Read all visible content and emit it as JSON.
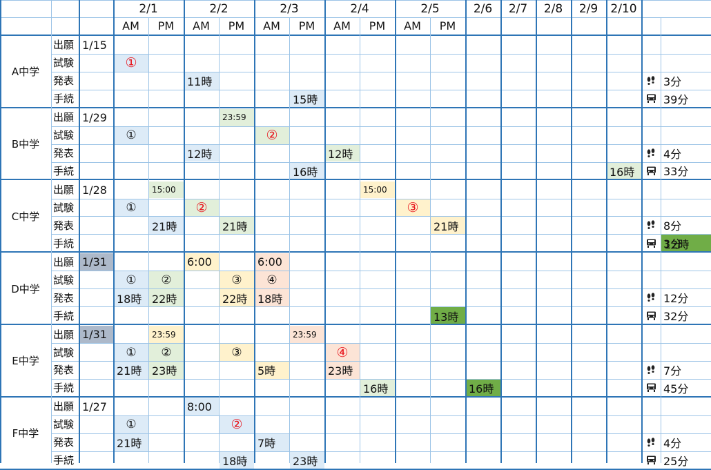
{
  "header": {
    "dates": [
      "2/1",
      "2/2",
      "2/3",
      "2/4",
      "2/5",
      "2/6",
      "2/7",
      "2/8",
      "2/9",
      "2/10"
    ],
    "am": "AM",
    "pm": "PM"
  },
  "row_labels": [
    "出願",
    "試験",
    "発表",
    "手続"
  ],
  "colors": {
    "blue": "#ddebf7",
    "green_light": "#e2efda",
    "yellow": "#fff2cc",
    "peach": "#fce4d6",
    "grey_blue": "#adb9ca",
    "green_dark": "#70ad47",
    "border": "#2e75b6",
    "grid": "#9bc3e6"
  },
  "schools": [
    {
      "name": "A中学",
      "cells": [
        {
          "row": 0,
          "col": 0,
          "text": "1/15",
          "style": "plain"
        },
        {
          "row": 1,
          "col": 1,
          "text": "①",
          "style": "blue",
          "red": true
        },
        {
          "row": 2,
          "col": 3,
          "text": "11時",
          "style": "blue"
        },
        {
          "row": 3,
          "col": 6,
          "text": "15時",
          "style": "blue"
        }
      ],
      "walk": "3分",
      "train": "39分"
    },
    {
      "name": "B中学",
      "cells": [
        {
          "row": 0,
          "col": 0,
          "text": "1/29",
          "style": "plain"
        },
        {
          "row": 0,
          "col": 4,
          "text": "23:59",
          "style": "green_light",
          "small": true
        },
        {
          "row": 1,
          "col": 1,
          "text": "①",
          "style": "blue"
        },
        {
          "row": 1,
          "col": 5,
          "text": "②",
          "style": "green_light",
          "red": true
        },
        {
          "row": 2,
          "col": 3,
          "text": "12時",
          "style": "blue"
        },
        {
          "row": 2,
          "col": 7,
          "text": "12時",
          "style": "green_light"
        },
        {
          "row": 3,
          "col": 6,
          "text": "16時",
          "style": "blue"
        },
        {
          "row": 3,
          "col": 15,
          "text": "16時",
          "style": "green_light"
        }
      ],
      "walk": "4分",
      "train": "33分"
    },
    {
      "name": "C中学",
      "cells": [
        {
          "row": 0,
          "col": 0,
          "text": "1/28",
          "style": "plain"
        },
        {
          "row": 0,
          "col": 2,
          "text": "15:00",
          "style": "green_light",
          "small": true
        },
        {
          "row": 0,
          "col": 8,
          "text": "15:00",
          "style": "yellow",
          "small": true
        },
        {
          "row": 1,
          "col": 1,
          "text": "①",
          "style": "blue"
        },
        {
          "row": 1,
          "col": 3,
          "text": "②",
          "style": "green_light",
          "red": true
        },
        {
          "row": 1,
          "col": 9,
          "text": "③",
          "style": "yellow",
          "red": true
        },
        {
          "row": 2,
          "col": 2,
          "text": "21時",
          "style": "blue"
        },
        {
          "row": 2,
          "col": 4,
          "text": "21時",
          "style": "green_light"
        },
        {
          "row": 2,
          "col": 10,
          "text": "21時",
          "style": "yellow"
        },
        {
          "row": 3,
          "col": 17,
          "text": "12時",
          "style": "green_dark"
        }
      ],
      "walk": "8分",
      "train": "3分"
    },
    {
      "name": "D中学",
      "cells": [
        {
          "row": 0,
          "col": 0,
          "text": "1/31",
          "style": "grey_blue"
        },
        {
          "row": 0,
          "col": 3,
          "text": "6:00",
          "style": "yellow"
        },
        {
          "row": 0,
          "col": 5,
          "text": "6:00",
          "style": "peach"
        },
        {
          "row": 1,
          "col": 1,
          "text": "①",
          "style": "blue"
        },
        {
          "row": 1,
          "col": 2,
          "text": "②",
          "style": "green_light"
        },
        {
          "row": 1,
          "col": 4,
          "text": "③",
          "style": "yellow"
        },
        {
          "row": 1,
          "col": 5,
          "text": "④",
          "style": "peach"
        },
        {
          "row": 2,
          "col": 1,
          "text": "18時",
          "style": "blue"
        },
        {
          "row": 2,
          "col": 2,
          "text": "22時",
          "style": "green_light"
        },
        {
          "row": 2,
          "col": 4,
          "text": "22時",
          "style": "yellow"
        },
        {
          "row": 2,
          "col": 5,
          "text": "18時",
          "style": "peach"
        },
        {
          "row": 3,
          "col": 10,
          "text": "13時",
          "style": "green_dark"
        }
      ],
      "walk": "12分",
      "train": "32分"
    },
    {
      "name": "E中学",
      "cells": [
        {
          "row": 0,
          "col": 0,
          "text": "1/31",
          "style": "grey_blue"
        },
        {
          "row": 0,
          "col": 2,
          "text": "23:59",
          "style": "yellow",
          "small": true
        },
        {
          "row": 0,
          "col": 6,
          "text": "23:59",
          "style": "peach",
          "small": true
        },
        {
          "row": 1,
          "col": 1,
          "text": "①",
          "style": "blue"
        },
        {
          "row": 1,
          "col": 2,
          "text": "②",
          "style": "green_light"
        },
        {
          "row": 1,
          "col": 4,
          "text": "③",
          "style": "yellow"
        },
        {
          "row": 1,
          "col": 7,
          "text": "④",
          "style": "peach",
          "red": true
        },
        {
          "row": 2,
          "col": 1,
          "text": "21時",
          "style": "blue"
        },
        {
          "row": 2,
          "col": 2,
          "text": "23時",
          "style": "green_light"
        },
        {
          "row": 2,
          "col": 5,
          "text": "5時",
          "style": "yellow"
        },
        {
          "row": 2,
          "col": 7,
          "text": "23時",
          "style": "peach"
        },
        {
          "row": 3,
          "col": 8,
          "text": "16時",
          "style": "green_light"
        },
        {
          "row": 3,
          "col": 11,
          "text": "16時",
          "style": "green_dark"
        }
      ],
      "walk": "7分",
      "train": "45分"
    },
    {
      "name": "F中学",
      "cells": [
        {
          "row": 0,
          "col": 0,
          "text": "1/27",
          "style": "plain"
        },
        {
          "row": 0,
          "col": 3,
          "text": "8:00",
          "style": "blue"
        },
        {
          "row": 1,
          "col": 1,
          "text": "①",
          "style": "blue"
        },
        {
          "row": 1,
          "col": 4,
          "text": "②",
          "style": "blue",
          "red": true
        },
        {
          "row": 2,
          "col": 1,
          "text": "21時",
          "style": "blue"
        },
        {
          "row": 2,
          "col": 5,
          "text": "7時",
          "style": "blue"
        },
        {
          "row": 3,
          "col": 4,
          "text": "18時",
          "style": "blue"
        },
        {
          "row": 3,
          "col": 6,
          "text": "23時",
          "style": "blue"
        }
      ],
      "walk": "4分",
      "train": "25分"
    }
  ]
}
